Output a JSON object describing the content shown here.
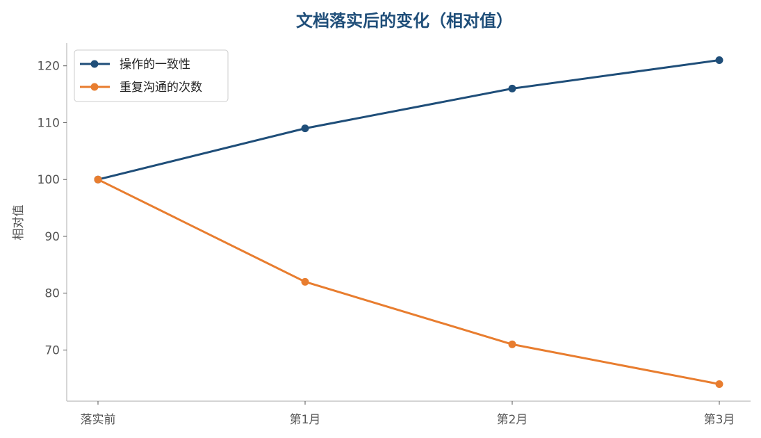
{
  "chart_data": {
    "type": "line",
    "title": "文档落实后的变化（相对值）",
    "xlabel": "",
    "ylabel": "相对值",
    "categories": [
      "落实前",
      "第1月",
      "第2月",
      "第3月"
    ],
    "yticks": [
      70,
      80,
      90,
      100,
      110,
      120
    ],
    "ylim": [
      61,
      124
    ],
    "grid": false,
    "legend_position": "top-left",
    "series": [
      {
        "name": "操作的一致性",
        "values": [
          100,
          109,
          116,
          121
        ],
        "color": "#1f4e79"
      },
      {
        "name": "重复沟通的次数",
        "values": [
          100,
          82,
          71,
          64
        ],
        "color": "#e87d2f"
      }
    ]
  }
}
